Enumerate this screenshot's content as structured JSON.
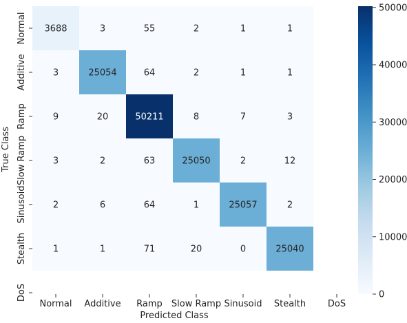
{
  "chart_data": {
    "type": "heatmap",
    "title": "",
    "xlabel": "Predicted Class",
    "ylabel": "True Class",
    "x_categories": [
      "Normal",
      "Additive",
      "Ramp",
      "Slow Ramp",
      "Sinusoid",
      "Stealth",
      "DoS"
    ],
    "y_categories": [
      "Normal",
      "Additive",
      "Ramp",
      "Slow Ramp",
      "Sinusoid",
      "Stealth",
      "DoS"
    ],
    "values": [
      [
        3688,
        3,
        55,
        2,
        1,
        1,
        null
      ],
      [
        3,
        25054,
        64,
        2,
        1,
        1,
        null
      ],
      [
        9,
        20,
        50211,
        8,
        7,
        3,
        null
      ],
      [
        3,
        2,
        63,
        25050,
        2,
        12,
        null
      ],
      [
        2,
        6,
        64,
        1,
        25057,
        2,
        null
      ],
      [
        1,
        1,
        71,
        20,
        0,
        25040,
        null
      ],
      [
        null,
        null,
        null,
        null,
        null,
        null,
        null
      ]
    ],
    "colorscale": "Blues",
    "colors": {
      "low": "#f7fbff",
      "high": "#08306b"
    },
    "colorbar": {
      "range": [
        0,
        50211
      ],
      "ticks": [
        0,
        10000,
        20000,
        30000,
        40000,
        50000
      ],
      "tick_labels": [
        "0",
        "10000",
        "20000",
        "30000",
        "40000",
        "50000"
      ]
    }
  }
}
